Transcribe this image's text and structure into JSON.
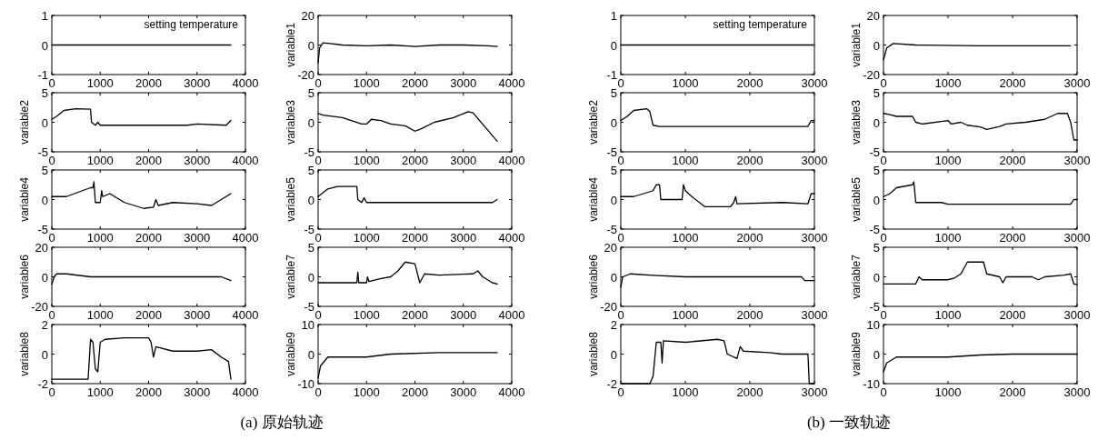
{
  "chart_data": [
    {
      "type": "line",
      "annotations": [
        "setting temperature"
      ],
      "xlim": [
        0,
        4000
      ],
      "xticks": [
        0,
        1000,
        2000,
        3000,
        4000
      ],
      "ylim": [
        -1,
        1
      ],
      "yticks": [
        -1,
        0,
        1
      ],
      "series": [
        {
          "color": "#000000",
          "x": [
            0,
            3700
          ],
          "values": [
            0,
            0
          ]
        }
      ]
    },
    {
      "type": "line",
      "ylabel": "variable1",
      "xlim": [
        0,
        4000
      ],
      "xticks": [
        0,
        1000,
        2000,
        3000,
        4000
      ],
      "ylim": [
        -20,
        20
      ],
      "yticks": [
        -20,
        0,
        20
      ],
      "series": [
        {
          "color": "#000000",
          "x": [
            0,
            30,
            100,
            250,
            500,
            1000,
            1500,
            2000,
            2500,
            3000,
            3500,
            3700
          ],
          "values": [
            -12,
            -2,
            1.5,
            1,
            0,
            -0.5,
            0,
            -1,
            0,
            0,
            -0.5,
            -1
          ]
        }
      ]
    },
    {
      "type": "line",
      "ylabel": "variable2",
      "xlim": [
        0,
        4000
      ],
      "xticks": [
        0,
        1000,
        2000,
        3000,
        4000
      ],
      "ylim": [
        -5,
        5
      ],
      "yticks": [
        -5,
        0,
        5
      ],
      "series": [
        {
          "color": "#000000",
          "x": [
            0,
            100,
            250,
            500,
            800,
            820,
            900,
            950,
            1000,
            2800,
            3000,
            3600,
            3700
          ],
          "values": [
            0.5,
            1,
            2,
            2.3,
            2.2,
            0,
            -0.5,
            0,
            -0.5,
            -0.5,
            -0.3,
            -0.5,
            0.3
          ]
        }
      ]
    },
    {
      "type": "line",
      "ylabel": "variable3",
      "xlim": [
        0,
        4000
      ],
      "xticks": [
        0,
        1000,
        2000,
        3000,
        4000
      ],
      "ylim": [
        -5,
        5
      ],
      "yticks": [
        -5,
        0,
        5
      ],
      "series": [
        {
          "color": "#000000",
          "x": [
            0,
            100,
            500,
            900,
            1000,
            1100,
            1300,
            1500,
            1800,
            2000,
            2100,
            2400,
            2800,
            3100,
            3200,
            3700
          ],
          "values": [
            1.5,
            1.2,
            0.8,
            -0.3,
            -0.3,
            0.5,
            0.3,
            -0.3,
            -0.6,
            -1.5,
            -1.2,
            0,
            0.8,
            1.8,
            1.6,
            -3.2
          ]
        }
      ]
    },
    {
      "type": "line",
      "ylabel": "variable4",
      "xlim": [
        0,
        4000
      ],
      "xticks": [
        0,
        1000,
        2000,
        3000,
        4000
      ],
      "ylim": [
        -5,
        5
      ],
      "yticks": [
        -5,
        0,
        5
      ],
      "series": [
        {
          "color": "#000000",
          "x": [
            0,
            300,
            800,
            850,
            870,
            900,
            1000,
            1030,
            1050,
            1200,
            1500,
            1900,
            2100,
            2150,
            2200,
            2500,
            3000,
            3300,
            3500,
            3700
          ],
          "values": [
            0.5,
            0.5,
            2,
            2,
            3,
            -0.5,
            -0.5,
            1.5,
            0.5,
            1,
            -0.5,
            -1.5,
            -1.3,
            0,
            -1,
            -0.5,
            -0.7,
            -1,
            0,
            1
          ]
        }
      ]
    },
    {
      "type": "line",
      "ylabel": "variable5",
      "xlim": [
        0,
        4000
      ],
      "xticks": [
        0,
        1000,
        2000,
        3000,
        4000
      ],
      "ylim": [
        -5,
        5
      ],
      "yticks": [
        -5,
        0,
        5
      ],
      "series": [
        {
          "color": "#000000",
          "x": [
            0,
            200,
            400,
            800,
            820,
            900,
            950,
            1000,
            3600,
            3700
          ],
          "values": [
            0.5,
            1.8,
            2.2,
            2.2,
            0,
            -0.5,
            0.3,
            -0.5,
            -0.5,
            0
          ]
        }
      ]
    },
    {
      "type": "line",
      "ylabel": "variable6",
      "xlim": [
        0,
        4000
      ],
      "xticks": [
        0,
        1000,
        2000,
        3000,
        4000
      ],
      "ylim": [
        -20,
        20
      ],
      "yticks": [
        -20,
        0,
        20
      ],
      "series": [
        {
          "color": "#000000",
          "x": [
            0,
            50,
            100,
            300,
            800,
            1500,
            3500,
            3700
          ],
          "values": [
            -5,
            0,
            2,
            2,
            0,
            0,
            0,
            -2.5
          ]
        }
      ]
    },
    {
      "type": "line",
      "ylabel": "variable7",
      "xlim": [
        0,
        4000
      ],
      "xticks": [
        0,
        1000,
        2000,
        3000,
        4000
      ],
      "ylim": [
        -5,
        5
      ],
      "yticks": [
        -5,
        0,
        5
      ],
      "series": [
        {
          "color": "#000000",
          "x": [
            0,
            800,
            820,
            840,
            1000,
            1020,
            1050,
            1300,
            1500,
            1650,
            1800,
            2000,
            2100,
            2200,
            2500,
            3200,
            3300,
            3400,
            3500,
            3600,
            3700
          ],
          "values": [
            -1,
            -1,
            0.8,
            -1,
            -1,
            0,
            -0.8,
            -0.3,
            0,
            1,
            2.5,
            2.2,
            -1,
            0.5,
            0.3,
            0.5,
            1,
            0,
            -0.5,
            -1,
            -1.2
          ]
        }
      ]
    },
    {
      "type": "line",
      "ylabel": "variable8",
      "annotations": [
        "(a)   原始轨迹"
      ],
      "xlim": [
        0,
        4000
      ],
      "xticks": [
        0,
        1000,
        2000,
        3000,
        4000
      ],
      "ylim": [
        -2,
        2
      ],
      "yticks": [
        -2,
        0,
        2
      ],
      "series": [
        {
          "color": "#000000",
          "x": [
            0,
            750,
            800,
            850,
            900,
            950,
            1000,
            1100,
            1500,
            2000,
            2050,
            2100,
            2150,
            2500,
            3000,
            3300,
            3500,
            3650,
            3700
          ],
          "values": [
            -1.7,
            -1.7,
            1,
            0.8,
            -1,
            -1.2,
            0.8,
            1,
            1.1,
            1.1,
            0.8,
            -0.2,
            0.5,
            0.2,
            0.2,
            0.3,
            -0.2,
            -0.5,
            -1.7
          ]
        }
      ]
    },
    {
      "type": "line",
      "ylabel": "variable9",
      "xlim": [
        0,
        4000
      ],
      "xticks": [
        0,
        1000,
        2000,
        3000,
        4000
      ],
      "ylim": [
        -10,
        10
      ],
      "yticks": [
        -10,
        0,
        10
      ],
      "series": [
        {
          "color": "#000000",
          "x": [
            0,
            50,
            200,
            1000,
            1500,
            2500,
            3700
          ],
          "values": [
            -8,
            -4,
            -1,
            -1,
            0,
            0.5,
            0.5
          ]
        }
      ]
    },
    {
      "type": "line",
      "annotations": [
        "setting temperature"
      ],
      "xlim": [
        0,
        3000
      ],
      "xticks": [
        0,
        1000,
        2000,
        3000
      ],
      "ylim": [
        -1,
        1
      ],
      "yticks": [
        -1,
        0,
        1
      ],
      "series": [
        {
          "color": "#000000",
          "x": [
            0,
            3000
          ],
          "values": [
            0,
            0
          ]
        }
      ]
    },
    {
      "type": "line",
      "ylabel": "variable1",
      "xlim": [
        0,
        3000
      ],
      "xticks": [
        0,
        1000,
        2000,
        3000
      ],
      "ylim": [
        -20,
        20
      ],
      "yticks": [
        -20,
        0,
        20
      ],
      "series": [
        {
          "color": "#000000",
          "x": [
            0,
            50,
            150,
            500,
            1500,
            1700,
            2900
          ],
          "values": [
            -10,
            -2,
            1,
            0,
            -0.5,
            -0.5,
            -0.5
          ]
        }
      ]
    },
    {
      "type": "line",
      "ylabel": "variable2",
      "xlim": [
        0,
        3000
      ],
      "xticks": [
        0,
        1000,
        2000,
        3000
      ],
      "ylim": [
        -5,
        5
      ],
      "yticks": [
        -5,
        0,
        5
      ],
      "series": [
        {
          "color": "#000000",
          "x": [
            0,
            100,
            200,
            400,
            450,
            500,
            600,
            2900,
            2950,
            3000
          ],
          "values": [
            0.3,
            1,
            2,
            2.3,
            1.8,
            -0.5,
            -0.7,
            -0.7,
            0.3,
            0.3
          ]
        }
      ]
    },
    {
      "type": "line",
      "ylabel": "variable3",
      "xlim": [
        0,
        3000
      ],
      "xticks": [
        0,
        1000,
        2000,
        3000
      ],
      "ylim": [
        -5,
        5
      ],
      "yticks": [
        -5,
        0,
        5
      ],
      "series": [
        {
          "color": "#000000",
          "x": [
            0,
            100,
            200,
            450,
            500,
            600,
            1000,
            1050,
            1200,
            1300,
            1500,
            1600,
            1800,
            1900,
            2200,
            2500,
            2700,
            2850,
            2900,
            2950,
            3000
          ],
          "values": [
            1.5,
            1.3,
            1,
            1,
            0,
            -0.3,
            0.3,
            -0.3,
            0,
            -0.5,
            -0.8,
            -1.2,
            -0.7,
            -0.3,
            0,
            0.5,
            1.5,
            1.5,
            0,
            -3,
            -3
          ]
        }
      ]
    },
    {
      "type": "line",
      "ylabel": "variable4",
      "xlim": [
        0,
        3000
      ],
      "xticks": [
        0,
        1000,
        2000,
        3000
      ],
      "ylim": [
        -5,
        5
      ],
      "yticks": [
        -5,
        0,
        5
      ],
      "series": [
        {
          "color": "#000000",
          "x": [
            0,
            200,
            500,
            550,
            600,
            620,
            950,
            970,
            1000,
            1100,
            1300,
            1700,
            1750,
            1780,
            1800,
            2500,
            2900,
            2950,
            3000
          ],
          "values": [
            0.5,
            0.5,
            1.5,
            2.5,
            2.5,
            0,
            0,
            2.5,
            1.5,
            0.5,
            -1.2,
            -1.2,
            -0.5,
            0.5,
            -0.7,
            -0.5,
            -0.7,
            1,
            1
          ]
        }
      ]
    },
    {
      "type": "line",
      "ylabel": "variable5",
      "xlim": [
        0,
        3000
      ],
      "xticks": [
        0,
        1000,
        2000,
        3000
      ],
      "ylim": [
        -5,
        5
      ],
      "yticks": [
        -5,
        0,
        5
      ],
      "series": [
        {
          "color": "#000000",
          "x": [
            0,
            100,
            200,
            450,
            470,
            500,
            900,
            1000,
            2900,
            2950,
            3000
          ],
          "values": [
            0.5,
            1,
            2,
            2.5,
            3,
            -0.5,
            -0.5,
            -0.8,
            -0.8,
            0,
            0
          ]
        }
      ]
    },
    {
      "type": "line",
      "ylabel": "variable6",
      "xlim": [
        0,
        3000
      ],
      "xticks": [
        0,
        1000,
        2000,
        3000
      ],
      "ylim": [
        -20,
        20
      ],
      "yticks": [
        -20,
        0,
        20
      ],
      "series": [
        {
          "color": "#000000",
          "x": [
            0,
            30,
            150,
            500,
            1000,
            2800,
            2850,
            3000
          ],
          "values": [
            -7,
            0,
            2,
            1,
            0,
            0,
            -2.5,
            -2.5
          ]
        }
      ]
    },
    {
      "type": "line",
      "ylabel": "variable7",
      "xlim": [
        0,
        3000
      ],
      "xticks": [
        0,
        1000,
        2000,
        3000
      ],
      "ylim": [
        -5,
        5
      ],
      "yticks": [
        -5,
        0,
        5
      ],
      "series": [
        {
          "color": "#000000",
          "x": [
            0,
            500,
            550,
            600,
            1000,
            1100,
            1200,
            1250,
            1300,
            1550,
            1600,
            1800,
            1850,
            1900,
            2300,
            2400,
            2500,
            2800,
            2900,
            2950,
            3000
          ],
          "values": [
            -1.2,
            -1.2,
            0,
            -0.5,
            -0.5,
            -0.2,
            0.5,
            1.5,
            2.5,
            2.5,
            0.5,
            0,
            -1,
            0,
            0,
            -0.5,
            0,
            0.3,
            0.5,
            -1.2,
            -1.3
          ]
        }
      ]
    },
    {
      "type": "line",
      "ylabel": "variable8",
      "annotations": [
        "(b)   一致轨迹"
      ],
      "xlim": [
        0,
        3000
      ],
      "xticks": [
        0,
        1000,
        2000,
        3000
      ],
      "ylim": [
        -2,
        2
      ],
      "yticks": [
        -2,
        0,
        2
      ],
      "series": [
        {
          "color": "#000000",
          "x": [
            0,
            450,
            500,
            550,
            620,
            640,
            660,
            1000,
            1500,
            1600,
            1650,
            1800,
            1850,
            1900,
            2300,
            2500,
            2900,
            2920,
            3000
          ],
          "values": [
            -2,
            -2,
            -1.5,
            0.8,
            0.8,
            -0.6,
            0.9,
            0.8,
            1,
            0.9,
            0,
            -0.3,
            0.5,
            0.2,
            0.1,
            0,
            0,
            -2,
            -2
          ]
        }
      ]
    },
    {
      "type": "line",
      "ylabel": "variable9",
      "xlim": [
        0,
        3000
      ],
      "xticks": [
        0,
        1000,
        2000,
        3000
      ],
      "ylim": [
        -10,
        10
      ],
      "yticks": [
        -10,
        0,
        10
      ],
      "series": [
        {
          "color": "#000000",
          "x": [
            0,
            50,
            200,
            1000,
            1500,
            2000,
            3000
          ],
          "values": [
            -6,
            -3,
            -1,
            -1,
            -0.3,
            0,
            0
          ]
        }
      ]
    }
  ]
}
